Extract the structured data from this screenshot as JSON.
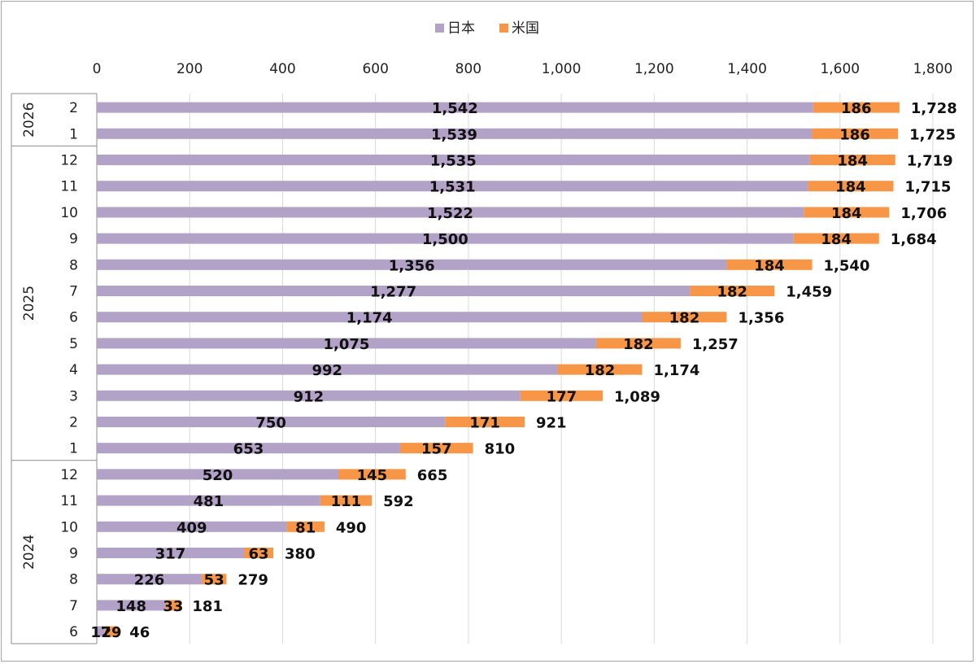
{
  "chart_data": {
    "type": "bar",
    "orientation": "horizontal",
    "stacked": true,
    "legend_position": "top-center",
    "grid": true,
    "xlim": [
      0,
      1800
    ],
    "ticks": [
      {
        "v": 0,
        "label": "0"
      },
      {
        "v": 200,
        "label": "200"
      },
      {
        "v": 400,
        "label": "400"
      },
      {
        "v": 600,
        "label": "600"
      },
      {
        "v": 800,
        "label": "800"
      },
      {
        "v": 1000,
        "label": "1,000"
      },
      {
        "v": 1200,
        "label": "1,200"
      },
      {
        "v": 1400,
        "label": "1,400"
      },
      {
        "v": 1600,
        "label": "1,600"
      },
      {
        "v": 1800,
        "label": "1,800"
      }
    ],
    "year_groups": [
      {
        "label": "2026",
        "months": [
          "2",
          "1"
        ]
      },
      {
        "label": "2025",
        "months": [
          "12",
          "11",
          "10",
          "9",
          "8",
          "7",
          "6",
          "5",
          "4",
          "3",
          "2",
          "1"
        ]
      },
      {
        "label": "2024",
        "months": [
          "12",
          "11",
          "10",
          "9",
          "8",
          "7",
          "6"
        ]
      }
    ],
    "series": [
      {
        "name": "日本",
        "color": "#b3a2c7",
        "values": [
          1542,
          1539,
          1535,
          1531,
          1522,
          1500,
          1356,
          1277,
          1174,
          1075,
          992,
          912,
          750,
          653,
          520,
          481,
          409,
          317,
          226,
          148,
          17
        ]
      },
      {
        "name": "米国",
        "color": "#f79646",
        "values": [
          186,
          186,
          184,
          184,
          184,
          184,
          184,
          182,
          182,
          182,
          182,
          177,
          171,
          157,
          145,
          111,
          81,
          63,
          53,
          33,
          29
        ]
      }
    ],
    "totals": [
      1728,
      1725,
      1719,
      1715,
      1706,
      1684,
      1540,
      1459,
      1356,
      1257,
      1174,
      1089,
      921,
      810,
      665,
      592,
      490,
      380,
      279,
      181,
      46
    ]
  }
}
